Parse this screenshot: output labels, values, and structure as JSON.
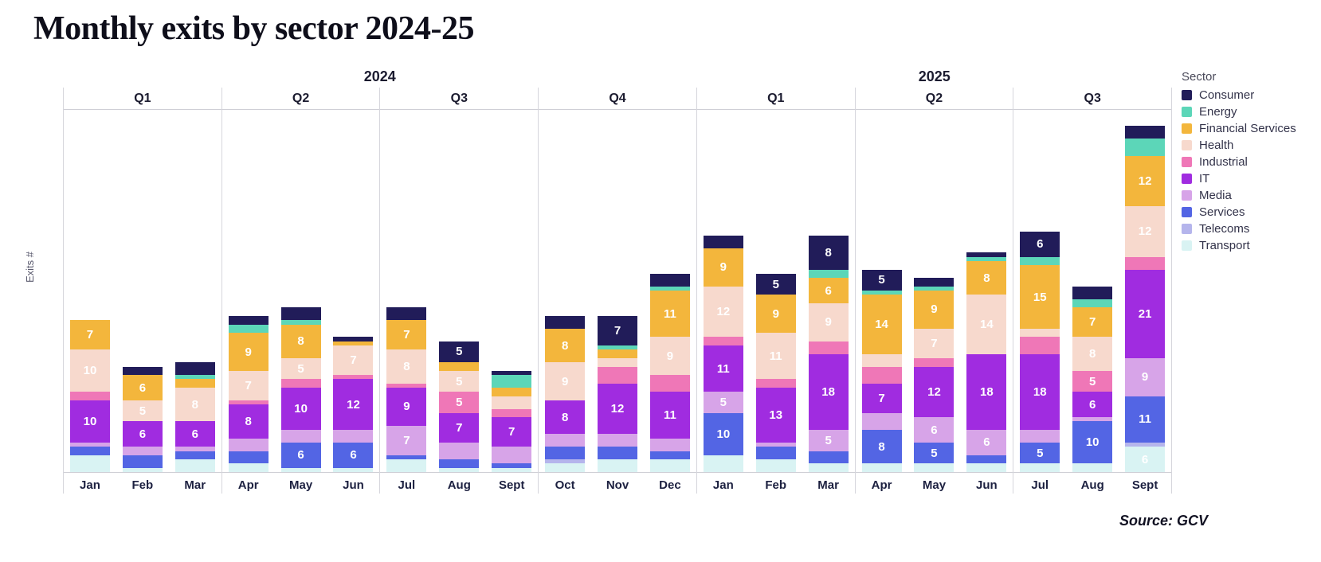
{
  "title": "Monthly exits by sector 2024-25",
  "y_axis_label": "Exits #",
  "source": "Source: GCV",
  "legend": {
    "title": "Sector"
  },
  "chart_data": {
    "type": "stacked_bar",
    "title": "Monthly exits by sector 2024-25",
    "ylabel": "Exits #",
    "value_label_min": 5,
    "sectors": [
      {
        "name": "Consumer",
        "color": "#211c59"
      },
      {
        "name": "Energy",
        "color": "#5cd6b8"
      },
      {
        "name": "Financial Services",
        "color": "#f3b63c"
      },
      {
        "name": "Health",
        "color": "#f7d9cd"
      },
      {
        "name": "Industrial",
        "color": "#ef77b7"
      },
      {
        "name": "IT",
        "color": "#a02ce0"
      },
      {
        "name": "Media",
        "color": "#d7a4e8"
      },
      {
        "name": "Services",
        "color": "#5365e4"
      },
      {
        "name": "Telecoms",
        "color": "#b5b5ec"
      },
      {
        "name": "Transport",
        "color": "#d9f3f3"
      }
    ],
    "years": [
      {
        "label": "2024",
        "quarters": [
          {
            "label": "Q1",
            "months": [
              {
                "label": "Jan",
                "values": {
                  "Financial Services": 7,
                  "Health": 10,
                  "Industrial": 2,
                  "IT": 10,
                  "Media": 1,
                  "Services": 2,
                  "Transport": 4
                }
              },
              {
                "label": "Feb",
                "values": {
                  "Consumer": 2,
                  "Financial Services": 6,
                  "Health": 5,
                  "IT": 6,
                  "Media": 2,
                  "Services": 3,
                  "Transport": 1
                }
              },
              {
                "label": "Mar",
                "values": {
                  "Consumer": 3,
                  "Energy": 1,
                  "Financial Services": 2,
                  "Health": 8,
                  "IT": 6,
                  "Media": 1,
                  "Services": 2,
                  "Transport": 3
                }
              }
            ]
          },
          {
            "label": "Q2",
            "months": [
              {
                "label": "Apr",
                "values": {
                  "Consumer": 2,
                  "Energy": 2,
                  "Financial Services": 9,
                  "Health": 7,
                  "Industrial": 1,
                  "IT": 8,
                  "Media": 3,
                  "Services": 3,
                  "Transport": 2
                }
              },
              {
                "label": "May",
                "values": {
                  "Consumer": 3,
                  "Energy": 1,
                  "Financial Services": 8,
                  "Health": 5,
                  "Industrial": 2,
                  "IT": 10,
                  "Media": 3,
                  "Services": 6,
                  "Transport": 1
                }
              },
              {
                "label": "Jun",
                "values": {
                  "Consumer": 1,
                  "Financial Services": 1,
                  "Health": 7,
                  "Industrial": 1,
                  "IT": 12,
                  "Media": 3,
                  "Services": 6,
                  "Transport": 1
                }
              }
            ]
          },
          {
            "label": "Q3",
            "months": [
              {
                "label": "Jul",
                "values": {
                  "Consumer": 3,
                  "Financial Services": 7,
                  "Health": 8,
                  "Industrial": 1,
                  "IT": 9,
                  "Media": 7,
                  "Services": 1,
                  "Transport": 3
                }
              },
              {
                "label": "Aug",
                "values": {
                  "Consumer": 5,
                  "Financial Services": 2,
                  "Health": 5,
                  "Industrial": 5,
                  "IT": 7,
                  "Media": 4,
                  "Services": 2,
                  "Transport": 1
                }
              },
              {
                "label": "Sept",
                "values": {
                  "Consumer": 1,
                  "Energy": 3,
                  "Financial Services": 2,
                  "Health": 3,
                  "Industrial": 2,
                  "IT": 7,
                  "Media": 4,
                  "Services": 1,
                  "Transport": 1
                }
              }
            ]
          },
          {
            "label": "Q4",
            "months": [
              {
                "label": "Oct",
                "values": {
                  "Consumer": 3,
                  "Financial Services": 8,
                  "Health": 9,
                  "IT": 8,
                  "Media": 3,
                  "Services": 3,
                  "Telecoms": 1,
                  "Transport": 2
                }
              },
              {
                "label": "Nov",
                "values": {
                  "Consumer": 7,
                  "Energy": 1,
                  "Financial Services": 2,
                  "Health": 2,
                  "Industrial": 4,
                  "IT": 12,
                  "Media": 3,
                  "Services": 3,
                  "Transport": 3
                }
              },
              {
                "label": "Dec",
                "values": {
                  "Consumer": 3,
                  "Energy": 1,
                  "Financial Services": 11,
                  "Health": 9,
                  "Industrial": 4,
                  "IT": 11,
                  "Media": 3,
                  "Services": 2,
                  "Transport": 3
                }
              }
            ]
          }
        ]
      },
      {
        "label": "2025",
        "quarters": [
          {
            "label": "Q1",
            "months": [
              {
                "label": "Jan",
                "values": {
                  "Consumer": 3,
                  "Financial Services": 9,
                  "Health": 12,
                  "Industrial": 2,
                  "IT": 11,
                  "Media": 5,
                  "Services": 10,
                  "Transport": 4
                }
              },
              {
                "label": "Feb",
                "values": {
                  "Consumer": 5,
                  "Financial Services": 9,
                  "Health": 11,
                  "Industrial": 2,
                  "IT": 13,
                  "Media": 1,
                  "Services": 3,
                  "Transport": 3
                }
              },
              {
                "label": "Mar",
                "values": {
                  "Consumer": 8,
                  "Energy": 2,
                  "Financial Services": 6,
                  "Health": 9,
                  "Industrial": 3,
                  "IT": 18,
                  "Media": 5,
                  "Services": 3,
                  "Transport": 2
                }
              }
            ]
          },
          {
            "label": "Q2",
            "months": [
              {
                "label": "Apr",
                "values": {
                  "Consumer": 5,
                  "Energy": 1,
                  "Financial Services": 14,
                  "Health": 3,
                  "Industrial": 4,
                  "IT": 7,
                  "Media": 4,
                  "Services": 8,
                  "Transport": 2
                }
              },
              {
                "label": "May",
                "values": {
                  "Consumer": 2,
                  "Energy": 1,
                  "Financial Services": 9,
                  "Health": 7,
                  "Industrial": 2,
                  "IT": 12,
                  "Media": 6,
                  "Services": 5,
                  "Transport": 2
                }
              },
              {
                "label": "Jun",
                "values": {
                  "Consumer": 1,
                  "Energy": 1,
                  "Financial Services": 8,
                  "Health": 14,
                  "IT": 18,
                  "Media": 6,
                  "Services": 2,
                  "Transport": 2
                }
              }
            ]
          },
          {
            "label": "Q3",
            "months": [
              {
                "label": "Jul",
                "values": {
                  "Consumer": 6,
                  "Energy": 2,
                  "Financial Services": 15,
                  "Health": 2,
                  "Industrial": 4,
                  "IT": 18,
                  "Media": 3,
                  "Services": 5,
                  "Transport": 2
                }
              },
              {
                "label": "Aug",
                "values": {
                  "Consumer": 3,
                  "Energy": 2,
                  "Financial Services": 7,
                  "Health": 8,
                  "Industrial": 5,
                  "IT": 6,
                  "Media": 1,
                  "Services": 10,
                  "Transport": 2
                }
              },
              {
                "label": "Sept",
                "values": {
                  "Consumer": 3,
                  "Energy": 4,
                  "Financial Services": 12,
                  "Health": 12,
                  "Industrial": 3,
                  "IT": 21,
                  "Media": 9,
                  "Services": 11,
                  "Telecoms": 1,
                  "Transport": 6
                }
              }
            ]
          }
        ]
      }
    ]
  }
}
